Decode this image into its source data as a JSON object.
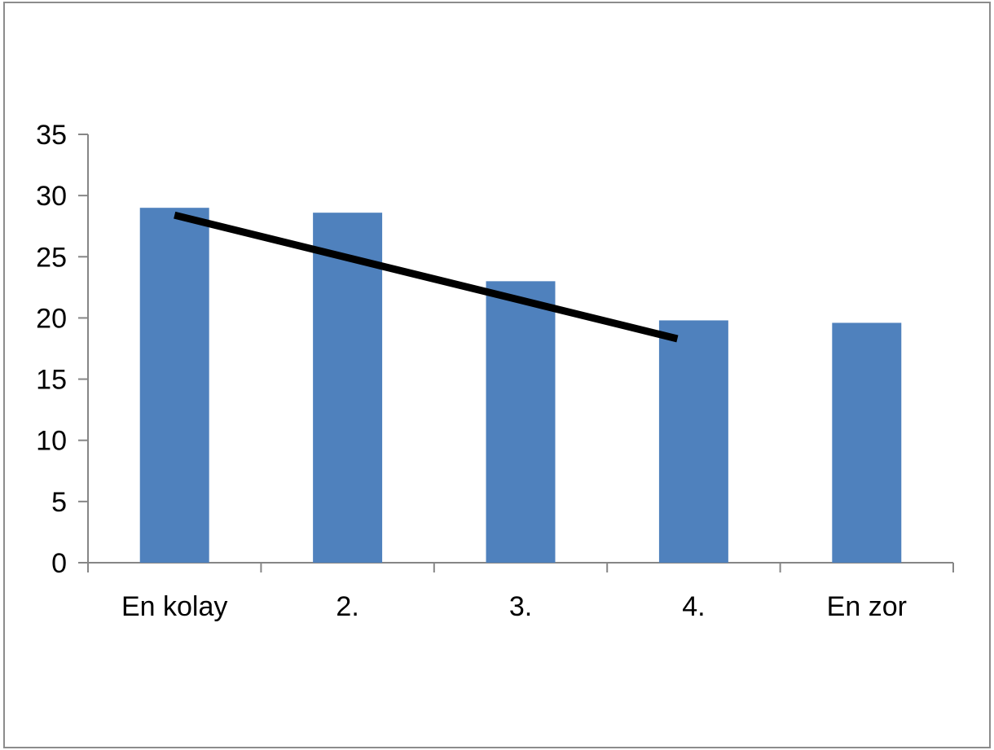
{
  "chart_data": {
    "type": "bar",
    "title": "",
    "xlabel": "",
    "ylabel": "",
    "categories": [
      "En kolay",
      "2.",
      "3.",
      "4.",
      "En zor"
    ],
    "values": [
      29,
      28.6,
      23,
      19.8,
      19.6
    ],
    "ylim": [
      0,
      35
    ],
    "yticks": [
      0,
      5,
      10,
      15,
      20,
      25,
      30,
      35
    ],
    "ytick_labels": [
      "0",
      "5",
      "10",
      "15",
      "20",
      "25",
      "30",
      "35"
    ],
    "grid": false,
    "legend": "none",
    "trendline": {
      "from_category": "En kolay",
      "to_category": "4.",
      "y_start": 28.4,
      "y_end": 18.3
    },
    "colors": {
      "bar": "#4f81bd",
      "trendline": "#000000",
      "axis": "#868686",
      "frame": "#8c8c8c"
    }
  }
}
